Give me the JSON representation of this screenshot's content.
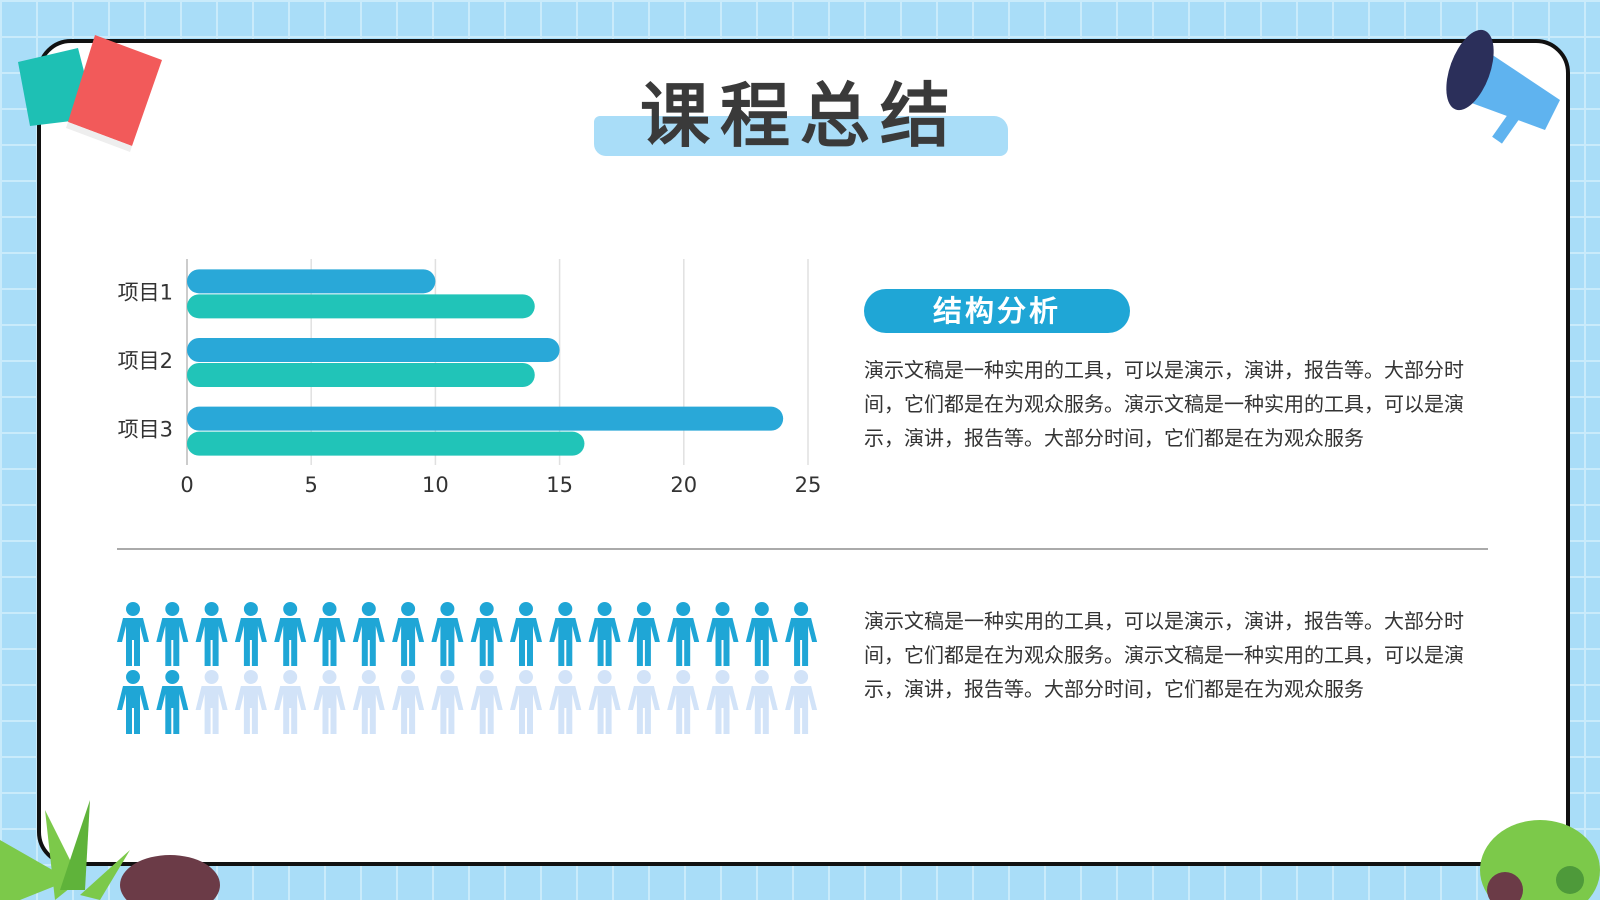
{
  "title": "课程总结",
  "badge": "结构分析",
  "paragraphs": [
    "演示文稿是一种实用的工具，可以是演示，演讲，报告等。大部分时间，它们都是在为观众服务。演示文稿是一种实用的工具，可以是演示，演讲，报告等。大部分时间，它们都是在为观众服务",
    "演示文稿是一种实用的工具，可以是演示，演讲，报告等。大部分时间，它们都是在为观众服务。演示文稿是一种实用的工具，可以是演示，演讲，报告等。大部分时间，它们都是在为观众服务"
  ],
  "chart_data": {
    "type": "hbar",
    "categories": [
      "项目1",
      "项目2",
      "项目3"
    ],
    "series": [
      {
        "color": "#29a8d8",
        "values": [
          10,
          15,
          24
        ]
      },
      {
        "color": "#21c4b8",
        "values": [
          14,
          14,
          16
        ]
      }
    ],
    "xlim": [
      0,
      25
    ],
    "xticks": [
      0,
      5,
      10,
      15,
      20,
      25
    ],
    "grid": true
  },
  "pictograph": {
    "filled": 20,
    "total": 36,
    "columns": 18,
    "color": "#1fa6d6",
    "empty_color": "#d2e3f8"
  }
}
